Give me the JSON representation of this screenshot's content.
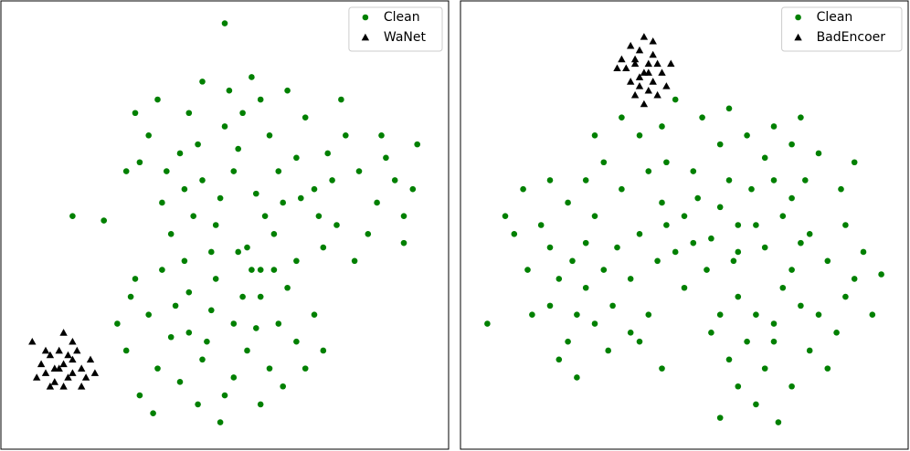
{
  "chart_data": [
    {
      "type": "scatter",
      "xlim": [
        0,
        100
      ],
      "ylim": [
        0,
        100
      ],
      "legend": "upper right",
      "series": [
        {
          "name": "Clean",
          "color": "#008000",
          "marker": "circle",
          "x": [
            57,
            52,
            63,
            45,
            70,
            40,
            75,
            60,
            50,
            66,
            36,
            80,
            55,
            48,
            72,
            84,
            42,
            58,
            64,
            33,
            86,
            77,
            28,
            90,
            45,
            38,
            68,
            53,
            61,
            74,
            49,
            35,
            82,
            56,
            44,
            71,
            62,
            30,
            88,
            79,
            47,
            66,
            59,
            41,
            54,
            76,
            67,
            51,
            43,
            85,
            31,
            73,
            37,
            58,
            92,
            47,
            42,
            52,
            38,
            58,
            33,
            45,
            55,
            62,
            30,
            40,
            50,
            60,
            35,
            66,
            28,
            48,
            56,
            44,
            64,
            70,
            36,
            52,
            42,
            58,
            31,
            68,
            46,
            39,
            54,
            26,
            61,
            49,
            34,
            72,
            57,
            41,
            63,
            29,
            53,
            50,
            16,
            23,
            93,
            90
          ],
          "y": [
            57,
            62,
            55,
            60,
            58,
            66,
            50,
            70,
            72,
            65,
            55,
            62,
            45,
            50,
            45,
            55,
            75,
            78,
            80,
            70,
            65,
            70,
            62,
            52,
            82,
            48,
            74,
            67,
            48,
            60,
            56,
            78,
            48,
            83,
            68,
            52,
            62,
            75,
            60,
            42,
            44,
            42,
            52,
            58,
            75,
            78,
            56,
            80,
            52,
            70,
            64,
            66,
            62,
            40,
            58,
            31,
            35,
            28,
            25,
            34,
            30,
            20,
            22,
            28,
            38,
            15,
            12,
            18,
            18,
            24,
            22,
            38,
            40,
            10,
            36,
            30,
            40,
            16,
            26,
            10,
            12,
            18,
            24,
            32,
            34,
            28,
            40,
            6,
            8,
            22,
            27,
            42,
            14,
            34,
            44,
            95,
            52,
            51,
            68,
            46
          ]
        },
        {
          "name": "WaNet",
          "color": "#000000",
          "marker": "triangle",
          "x": [
            14,
            12,
            16,
            10,
            18,
            13,
            15,
            11,
            17,
            9,
            19,
            14,
            12,
            16,
            8,
            20,
            13,
            15,
            11,
            18,
            14,
            7,
            21,
            10,
            16
          ],
          "y": [
            19,
            18,
            20,
            17,
            18,
            22,
            16,
            21,
            22,
            19,
            16,
            14,
            15,
            24,
            16,
            20,
            18,
            21,
            14,
            14,
            26,
            24,
            17,
            22,
            17
          ]
        }
      ]
    },
    {
      "type": "scatter",
      "xlim": [
        0,
        100
      ],
      "ylim": [
        0,
        100
      ],
      "legend": "upper right",
      "series": [
        {
          "name": "Clean",
          "color": "#008000",
          "marker": "circle",
          "x": [
            56,
            50,
            62,
            45,
            68,
            40,
            72,
            60,
            52,
            65,
            35,
            78,
            55,
            48,
            74,
            82,
            42,
            58,
            64,
            30,
            86,
            77,
            25,
            88,
            45,
            20,
            68,
            53,
            61,
            74,
            28,
            22,
            18,
            32,
            26,
            30,
            15,
            12,
            24,
            34,
            38,
            20,
            36,
            16,
            28,
            62,
            66,
            70,
            58,
            72,
            76,
            64,
            60,
            68,
            80,
            84,
            78,
            56,
            74,
            66,
            70,
            62,
            82,
            86,
            90,
            92,
            46,
            40,
            54,
            48,
            70,
            80,
            32,
            28,
            85,
            44,
            50,
            38,
            33,
            24,
            42,
            52,
            66,
            62,
            58,
            46,
            70,
            76,
            20,
            14,
            10,
            30,
            88,
            36,
            60,
            22,
            26,
            45,
            40,
            74,
            6,
            94,
            58,
            71,
            76
          ],
          "y": [
            47,
            52,
            50,
            55,
            45,
            48,
            52,
            60,
            62,
            58,
            45,
            48,
            40,
            44,
            40,
            42,
            62,
            68,
            70,
            52,
            50,
            60,
            42,
            38,
            72,
            45,
            65,
            56,
            42,
            56,
            36,
            38,
            50,
            40,
            30,
            28,
            40,
            48,
            55,
            32,
            38,
            32,
            58,
            30,
            46,
            34,
            30,
            28,
            30,
            36,
            32,
            24,
            20,
            18,
            30,
            26,
            22,
            26,
            14,
            10,
            24,
            14,
            18,
            34,
            44,
            30,
            64,
            70,
            74,
            78,
            72,
            66,
            64,
            60,
            58,
            42,
            36,
            26,
            22,
            24,
            30,
            46,
            50,
            44,
            54,
            50,
            60,
            46,
            60,
            58,
            52,
            70,
            64,
            74,
            76,
            20,
            16,
            18,
            24,
            68,
            28,
            39,
            7,
            6,
            74
          ]
        },
        {
          "name": "BadEncoer",
          "color": "#000000",
          "marker": "triangle",
          "x": [
            41,
            39,
            43,
            38,
            44,
            40,
            42,
            37,
            45,
            41,
            39,
            43,
            36,
            46,
            40,
            42,
            38,
            44,
            41,
            35,
            47,
            40,
            43,
            39,
            42
          ],
          "y": [
            84,
            86,
            82,
            82,
            86,
            89,
            80,
            85,
            84,
            92,
            79,
            88,
            87,
            81,
            83,
            86,
            90,
            79,
            77,
            85,
            86,
            81,
            91,
            87,
            84
          ]
        }
      ]
    }
  ]
}
